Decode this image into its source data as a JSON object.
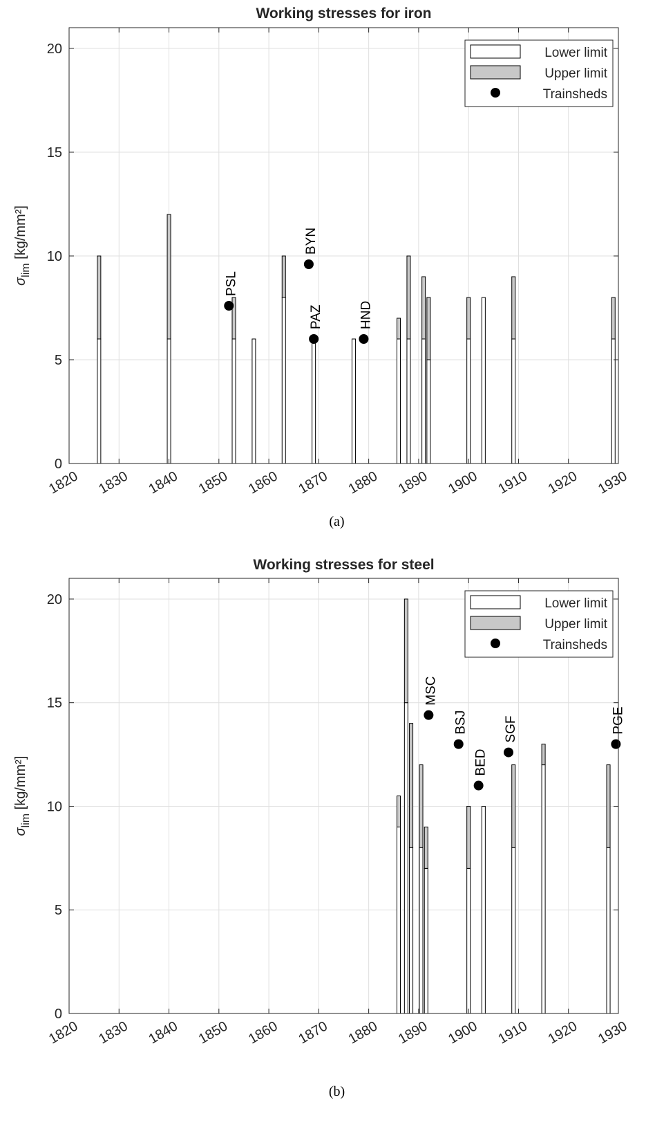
{
  "colors": {
    "upper_fill": "#c8c8c8",
    "lower_fill": "#ffffff",
    "bar_edge": "#000000",
    "marker": "#000000",
    "grid": "#dfdfdf"
  },
  "chart_data": [
    {
      "type": "bar",
      "panel": "(a)",
      "title": "Working stresses for iron",
      "ylabel": "σlim [kg/mm²]",
      "ylabel_parts": {
        "sigma": "σ",
        "sub": "lim",
        "rest": " [kg/mm²]"
      },
      "xlabel": "",
      "xlim": [
        1820,
        1930
      ],
      "ylim": [
        0,
        21
      ],
      "x_ticks": [
        1820,
        1830,
        1840,
        1850,
        1860,
        1870,
        1880,
        1890,
        1900,
        1910,
        1920,
        1930
      ],
      "y_ticks": [
        0,
        5,
        10,
        15,
        20
      ],
      "grid": true,
      "legend": {
        "placement": "top-right",
        "entries": [
          "Lower limit",
          "Upper limit",
          "Trainsheds"
        ]
      },
      "bars": [
        {
          "x": 1826,
          "lower": 6,
          "upper": 10
        },
        {
          "x": 1840,
          "lower": 6,
          "upper": 12
        },
        {
          "x": 1853,
          "lower": 6,
          "upper": 8
        },
        {
          "x": 1857,
          "lower": 6,
          "upper": 6
        },
        {
          "x": 1863,
          "lower": 8,
          "upper": 10
        },
        {
          "x": 1869,
          "lower": 6,
          "upper": 6
        },
        {
          "x": 1877,
          "lower": 6,
          "upper": 6
        },
        {
          "x": 1886,
          "lower": 6,
          "upper": 7
        },
        {
          "x": 1888,
          "lower": 6,
          "upper": 10
        },
        {
          "x": 1891,
          "lower": 6,
          "upper": 9
        },
        {
          "x": 1892,
          "lower": 5,
          "upper": 8
        },
        {
          "x": 1900,
          "lower": 6,
          "upper": 8
        },
        {
          "x": 1903,
          "lower": 8,
          "upper": 8
        },
        {
          "x": 1909,
          "lower": 6,
          "upper": 9
        },
        {
          "x": 1929,
          "lower": 6,
          "upper": 8
        }
      ],
      "trainsheds": [
        {
          "label": "PSL",
          "x": 1852,
          "y": 7.6
        },
        {
          "label": "BYN",
          "x": 1868,
          "y": 9.6
        },
        {
          "label": "PAZ",
          "x": 1869,
          "y": 6.0
        },
        {
          "label": "HND",
          "x": 1879,
          "y": 6.0
        }
      ]
    },
    {
      "type": "bar",
      "panel": "(b)",
      "title": "Working stresses for steel",
      "ylabel": "σlim [kg/mm²]",
      "ylabel_parts": {
        "sigma": "σ",
        "sub": "lim",
        "rest": " [kg/mm²]"
      },
      "xlabel": "",
      "xlim": [
        1820,
        1930
      ],
      "ylim": [
        0,
        21
      ],
      "x_ticks": [
        1820,
        1830,
        1840,
        1850,
        1860,
        1870,
        1880,
        1890,
        1900,
        1910,
        1920,
        1930
      ],
      "y_ticks": [
        0,
        5,
        10,
        15,
        20
      ],
      "grid": true,
      "legend": {
        "placement": "top-right",
        "entries": [
          "Lower limit",
          "Upper limit",
          "Trainsheds"
        ]
      },
      "bars": [
        {
          "x": 1886,
          "lower": 9,
          "upper": 10.5
        },
        {
          "x": 1887.5,
          "lower": 15,
          "upper": 20
        },
        {
          "x": 1888.5,
          "lower": 8,
          "upper": 14
        },
        {
          "x": 1890.5,
          "lower": 8,
          "upper": 12
        },
        {
          "x": 1891.5,
          "lower": 7,
          "upper": 9
        },
        {
          "x": 1900,
          "lower": 7,
          "upper": 10
        },
        {
          "x": 1903,
          "lower": 10,
          "upper": 10
        },
        {
          "x": 1909,
          "lower": 8,
          "upper": 12
        },
        {
          "x": 1915,
          "lower": 12,
          "upper": 13
        },
        {
          "x": 1928,
          "lower": 8,
          "upper": 12
        }
      ],
      "trainsheds": [
        {
          "label": "MSC",
          "x": 1892,
          "y": 14.4
        },
        {
          "label": "BSJ",
          "x": 1898,
          "y": 13.0
        },
        {
          "label": "BED",
          "x": 1902,
          "y": 11.0
        },
        {
          "label": "SGF",
          "x": 1908,
          "y": 12.6
        },
        {
          "label": "PGE",
          "x": 1929.5,
          "y": 13.0
        }
      ]
    }
  ]
}
